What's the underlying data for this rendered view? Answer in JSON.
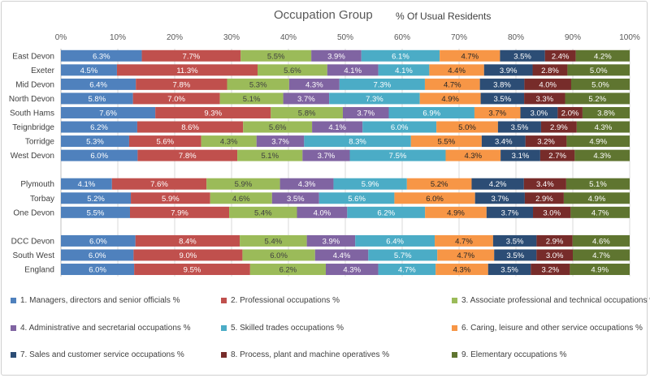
{
  "chart_data": {
    "type": "bar",
    "stacked": "100%",
    "orientation": "horizontal",
    "title": "Occupation Group",
    "subtitle": "% Of Usual Residents",
    "xlim": [
      0,
      100
    ],
    "x_ticks": [
      "0%",
      "10%",
      "20%",
      "30%",
      "40%",
      "50%",
      "60%",
      "70%",
      "80%",
      "90%",
      "100%"
    ],
    "grid": true,
    "legend_position": "bottom",
    "categories": [
      "East Devon",
      "Exeter",
      "Mid Devon",
      "North Devon",
      "South Hams",
      "Teignbridge",
      "Torridge",
      "West Devon",
      "",
      "Plymouth",
      "Torbay",
      "One Devon",
      "",
      "DCC Devon",
      "South West",
      "England"
    ],
    "series": [
      {
        "name": "1. Managers, directors and senior officials %",
        "color": "#4f81bd",
        "label_color": "#ffffff",
        "values": [
          6.3,
          4.5,
          6.4,
          5.8,
          7.6,
          6.2,
          5.3,
          6.0,
          null,
          4.1,
          5.2,
          5.5,
          null,
          6.0,
          6.0,
          6.0
        ]
      },
      {
        "name": "2. Professional occupations %",
        "color": "#c0504d",
        "label_color": "#ffffff",
        "values": [
          7.7,
          11.3,
          7.8,
          7.0,
          9.3,
          8.6,
          5.6,
          7.8,
          null,
          7.6,
          5.9,
          7.9,
          null,
          8.4,
          9.0,
          9.5
        ]
      },
      {
        "name": "3. Associate professional and technical occupations %",
        "color": "#9bbb59",
        "label_color": "#404040",
        "values": [
          5.5,
          5.6,
          5.3,
          5.1,
          5.8,
          5.6,
          4.3,
          5.1,
          null,
          5.9,
          4.6,
          5.4,
          null,
          5.4,
          6.0,
          6.2
        ]
      },
      {
        "name": "4. Administrative and secretarial occupations %",
        "color": "#8064a2",
        "label_color": "#ffffff",
        "values": [
          3.9,
          4.1,
          4.3,
          3.7,
          3.7,
          4.1,
          3.7,
          3.7,
          null,
          4.3,
          3.5,
          4.0,
          null,
          3.9,
          4.4,
          4.3
        ]
      },
      {
        "name": "5. Skilled trades occupations %",
        "color": "#4bacc6",
        "label_color": "#ffffff",
        "values": [
          6.1,
          4.1,
          7.3,
          7.3,
          6.9,
          6.0,
          8.3,
          7.5,
          null,
          5.9,
          5.6,
          6.2,
          null,
          6.4,
          5.7,
          4.7
        ]
      },
      {
        "name": "6. Caring, leisure and other service occupations %",
        "color": "#f79646",
        "label_color": "#262626",
        "values": [
          4.7,
          4.4,
          4.7,
          4.9,
          3.7,
          5.0,
          5.5,
          4.3,
          null,
          5.2,
          6.0,
          4.9,
          null,
          4.7,
          4.7,
          4.3
        ]
      },
      {
        "name": "7. Sales and customer service occupations %",
        "color": "#2c4d75",
        "label_color": "#ffffff",
        "values": [
          3.5,
          3.9,
          3.8,
          3.5,
          3.0,
          3.5,
          3.4,
          3.1,
          null,
          4.2,
          3.7,
          3.7,
          null,
          3.5,
          3.5,
          3.5
        ]
      },
      {
        "name": "8. Process, plant and machine operatives %",
        "color": "#772c2a",
        "label_color": "#ffffff",
        "values": [
          2.4,
          2.8,
          4.0,
          3.3,
          2.0,
          2.9,
          3.2,
          2.7,
          null,
          3.4,
          2.9,
          3.0,
          null,
          2.9,
          3.0,
          3.2
        ]
      },
      {
        "name": "9. Elementary occupations %",
        "color": "#5f7530",
        "label_color": "#ffffff",
        "values": [
          4.2,
          5.0,
          5.0,
          5.2,
          3.8,
          4.3,
          4.9,
          4.3,
          null,
          5.1,
          4.9,
          4.7,
          null,
          4.6,
          4.7,
          4.9
        ]
      }
    ]
  }
}
